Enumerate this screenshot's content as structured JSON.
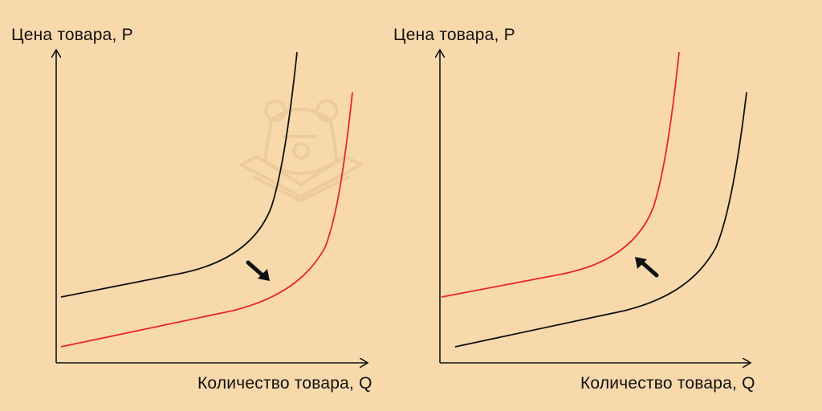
{
  "background_color": "#f7d9ac",
  "panels": [
    {
      "y_axis_label": "Цена товара, P",
      "x_axis_label": "Количество товара, Q",
      "original_curve_color": "#111111",
      "shifted_curve_color": "#e8242a",
      "shift_direction": "down-right",
      "arrow_icon": "arrow-down-right-icon"
    },
    {
      "y_axis_label": "Цена товара, P",
      "x_axis_label": "Количество товара, Q",
      "original_curve_color": "#111111",
      "shifted_curve_color": "#e8242a",
      "shift_direction": "up-left",
      "arrow_icon": "arrow-up-left-icon"
    }
  ],
  "watermark": "bear-logo-icon"
}
